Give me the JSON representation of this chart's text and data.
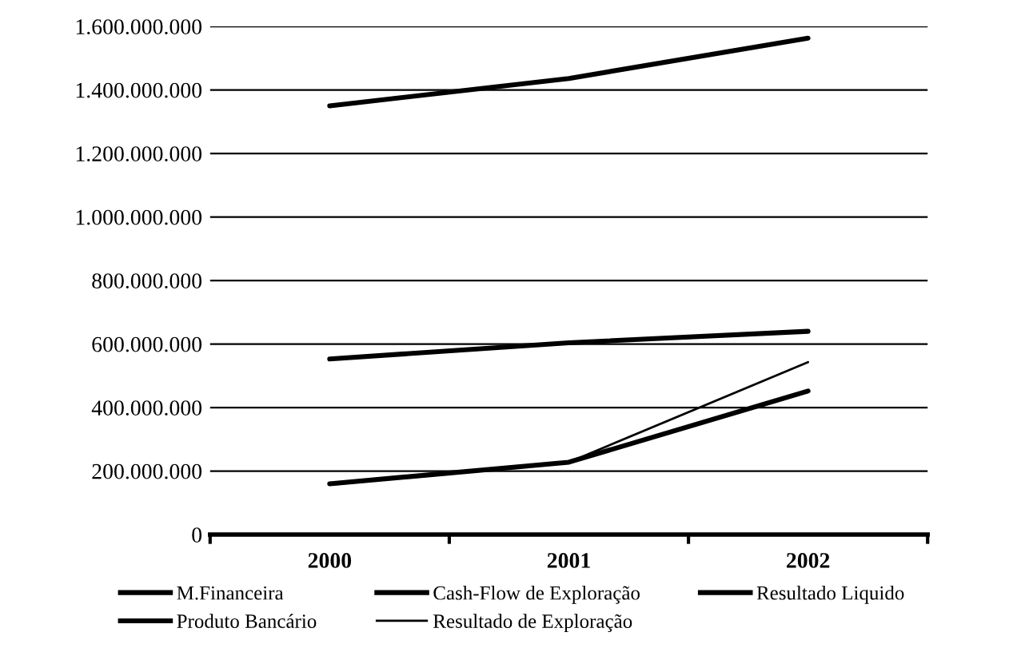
{
  "chart_data": {
    "type": "line",
    "categories": [
      "2000",
      "2001",
      "2002"
    ],
    "series": [
      {
        "name": "M.Financeira",
        "color": "#000000",
        "values": [
          553000000,
          604000000,
          640000000
        ]
      },
      {
        "name": "Produto Bancário",
        "color": "#000000",
        "values": [
          1350000000,
          1436000000,
          1563000000
        ]
      },
      {
        "name": "Cash-Flow de Exploração",
        "color": "#000000",
        "values": [
          null,
          null,
          null
        ]
      },
      {
        "name": "Resultado de Exploração",
        "color": "#000000",
        "values": [
          157000000,
          228000000,
          543000000
        ]
      },
      {
        "name": "Resultado Liquido",
        "color": "#000000",
        "values": [
          160000000,
          228000000,
          452000000
        ]
      }
    ],
    "ylim": [
      0,
      1600000000
    ],
    "yticks": [
      {
        "value": 0,
        "label": "0"
      },
      {
        "value": 200000000,
        "label": "200.000.000"
      },
      {
        "value": 400000000,
        "label": "400.000.000"
      },
      {
        "value": 600000000,
        "label": "600.000.000"
      },
      {
        "value": 800000000,
        "label": "800.000.000"
      },
      {
        "value": 1000000000,
        "label": "1.000.000.000"
      },
      {
        "value": 1200000000,
        "label": "1.200.000.000"
      },
      {
        "value": 1400000000,
        "label": "1.400.000.000"
      },
      {
        "value": 1600000000,
        "label": "1.600.000.000"
      }
    ],
    "grid": "y",
    "legend": "bottom",
    "marker": "none",
    "line_style": "solid"
  }
}
